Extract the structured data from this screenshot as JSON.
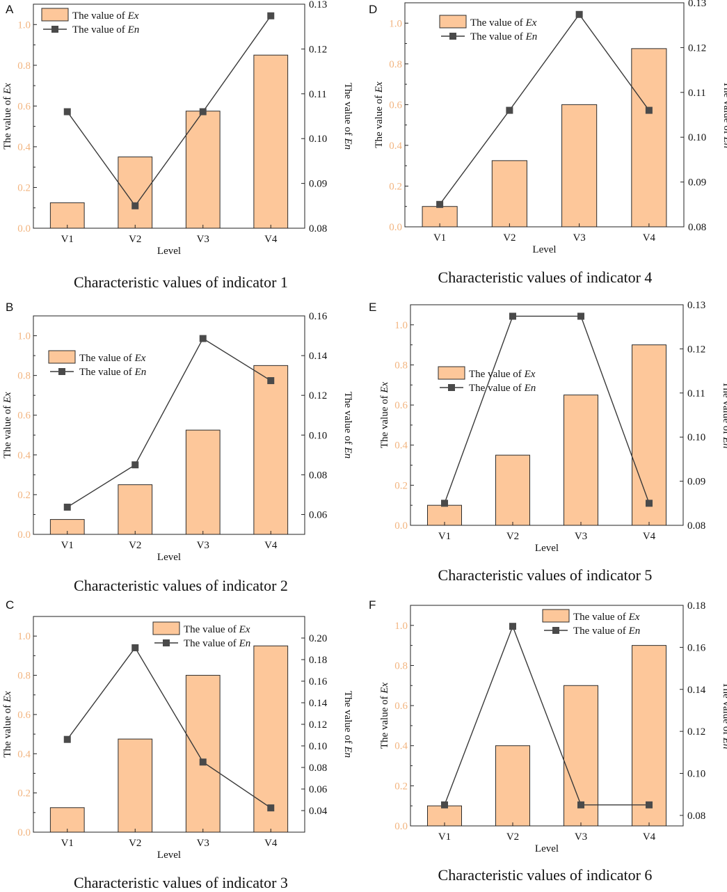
{
  "colors": {
    "bar_fill": "#fdc79a",
    "bar_stroke": "#2b2b2b",
    "line": "#3a3a3a",
    "marker": "#4a4a4a",
    "left_tick_text": "#f2b47f",
    "axis": "#222222"
  },
  "chart_data": [
    {
      "id": "A",
      "type": "bar+line",
      "panel_label": "A",
      "caption": "Characteristic values of indicator 1",
      "categories": [
        "V1",
        "V2",
        "V3",
        "V4"
      ],
      "xlabel": "Level",
      "ylabel": "The value of",
      "ylabel_var": "Ex",
      "y2label": "The value of",
      "y2label_var": "En",
      "ylim": [
        0,
        1.1
      ],
      "yticks": [
        "0.0",
        "0.2",
        "0.4",
        "0.6",
        "0.8",
        "1.0"
      ],
      "y2lim": [
        0.08,
        0.13
      ],
      "y2ticks": [
        "0.08",
        "0.09",
        "0.10",
        "0.11",
        "0.12",
        "0.13"
      ],
      "series": [
        {
          "name": "The value of",
          "name_var": "Ex",
          "kind": "bar",
          "axis": "left",
          "values": [
            0.125,
            0.35,
            0.575,
            0.85
          ]
        },
        {
          "name": "The value of",
          "name_var": "En",
          "kind": "line",
          "axis": "right",
          "values": [
            0.106,
            0.085,
            0.106,
            0.1274
          ]
        }
      ],
      "legend": "top-left"
    },
    {
      "id": "B",
      "type": "bar+line",
      "panel_label": "B",
      "caption": "Characteristic values of indicator 2",
      "categories": [
        "V1",
        "V2",
        "V3",
        "V4"
      ],
      "xlabel": "Level",
      "ylabel": "The value of",
      "ylabel_var": "Ex",
      "y2label": "The value of",
      "y2label_var": "En",
      "ylim": [
        0,
        1.1
      ],
      "yticks": [
        "0.0",
        "0.2",
        "0.4",
        "0.6",
        "0.8",
        "1.0"
      ],
      "y2lim": [
        0.05,
        0.16
      ],
      "y2ticks": [
        "0.06",
        "0.08",
        "0.10",
        "0.12",
        "0.14",
        "0.16"
      ],
      "series": [
        {
          "name": "The value of",
          "name_var": "Ex",
          "kind": "bar",
          "axis": "left",
          "values": [
            0.075,
            0.25,
            0.525,
            0.85
          ]
        },
        {
          "name": "The value of",
          "name_var": "En",
          "kind": "line",
          "axis": "right",
          "values": [
            0.0637,
            0.085,
            0.1486,
            0.1274
          ]
        }
      ],
      "legend": "middle-left"
    },
    {
      "id": "C",
      "type": "bar+line",
      "panel_label": "C",
      "caption": "Characteristic values of indicator 3",
      "categories": [
        "V1",
        "V2",
        "V3",
        "V4"
      ],
      "xlabel": "Level",
      "ylabel": "The value of",
      "ylabel_var": "Ex",
      "y2label": "The value of",
      "y2label_var": "En",
      "ylim": [
        0,
        1.1
      ],
      "yticks": [
        "0.0",
        "0.2",
        "0.4",
        "0.6",
        "0.8",
        "1.0"
      ],
      "y2lim": [
        0.02,
        0.22
      ],
      "y2ticks": [
        "0.04",
        "0.06",
        "0.08",
        "0.10",
        "0.12",
        "0.14",
        "0.16",
        "0.18",
        "0.20"
      ],
      "series": [
        {
          "name": "The value of",
          "name_var": "Ex",
          "kind": "bar",
          "axis": "left",
          "values": [
            0.125,
            0.475,
            0.8,
            0.95
          ]
        },
        {
          "name": "The value of",
          "name_var": "En",
          "kind": "line",
          "axis": "right",
          "values": [
            0.106,
            0.191,
            0.085,
            0.0425
          ]
        }
      ],
      "legend": "top-right"
    },
    {
      "id": "D",
      "type": "bar+line",
      "panel_label": "D",
      "caption": "Characteristic values of indicator 4",
      "categories": [
        "V1",
        "V2",
        "V3",
        "V4"
      ],
      "xlabel": "Level",
      "ylabel": "The value of",
      "ylabel_var": "Ex",
      "y2label": "The value of",
      "y2label_var": "En",
      "ylim": [
        0,
        1.1
      ],
      "yticks": [
        "0.0",
        "0.2",
        "0.4",
        "0.6",
        "0.8",
        "1.0"
      ],
      "y2lim": [
        0.08,
        0.13
      ],
      "y2ticks": [
        "0.08",
        "0.09",
        "0.10",
        "0.11",
        "0.12",
        "0.13"
      ],
      "series": [
        {
          "name": "The value of",
          "name_var": "Ex",
          "kind": "bar",
          "axis": "left",
          "values": [
            0.1,
            0.325,
            0.6,
            0.875
          ]
        },
        {
          "name": "The value of",
          "name_var": "En",
          "kind": "line",
          "axis": "right",
          "values": [
            0.085,
            0.106,
            0.1274,
            0.106
          ]
        }
      ],
      "legend": "top-left"
    },
    {
      "id": "E",
      "type": "bar+line",
      "panel_label": "E",
      "caption": "Characteristic values of indicator 5",
      "categories": [
        "V1",
        "V2",
        "V3",
        "V4"
      ],
      "xlabel": "Level",
      "ylabel": "The value of",
      "ylabel_var": "Ex",
      "y2label": "The value of",
      "y2label_var": "En",
      "ylim": [
        0,
        1.1
      ],
      "yticks": [
        "0.0",
        "0.2",
        "0.4",
        "0.6",
        "0.8",
        "1.0"
      ],
      "y2lim": [
        0.08,
        0.13
      ],
      "y2ticks": [
        "0.08",
        "0.09",
        "0.10",
        "0.11",
        "0.12",
        "0.13"
      ],
      "series": [
        {
          "name": "The value of",
          "name_var": "Ex",
          "kind": "bar",
          "axis": "left",
          "values": [
            0.1,
            0.35,
            0.65,
            0.9
          ]
        },
        {
          "name": "The value of",
          "name_var": "En",
          "kind": "line",
          "axis": "right",
          "values": [
            0.085,
            0.1274,
            0.1274,
            0.085
          ]
        }
      ],
      "legend": "middle-left"
    },
    {
      "id": "F",
      "type": "bar+line",
      "panel_label": "F",
      "caption": "Characteristic values of indicator 6",
      "categories": [
        "V1",
        "V2",
        "V3",
        "V4"
      ],
      "xlabel": "Level",
      "ylabel": "The value of",
      "ylabel_var": "Ex",
      "y2label": "The value of",
      "y2label_var": "En",
      "ylim": [
        0,
        1.1
      ],
      "yticks": [
        "0.0",
        "0.2",
        "0.4",
        "0.6",
        "0.8",
        "1.0"
      ],
      "y2lim": [
        0.075,
        0.18
      ],
      "y2ticks": [
        "0.08",
        "0.10",
        "0.12",
        "0.14",
        "0.16",
        "0.18"
      ],
      "series": [
        {
          "name": "The value of",
          "name_var": "Ex",
          "kind": "bar",
          "axis": "left",
          "values": [
            0.1,
            0.4,
            0.7,
            0.9
          ]
        },
        {
          "name": "The value of",
          "name_var": "En",
          "kind": "line",
          "axis": "right",
          "values": [
            0.085,
            0.17,
            0.085,
            0.085
          ]
        }
      ],
      "legend": "top-right"
    }
  ]
}
